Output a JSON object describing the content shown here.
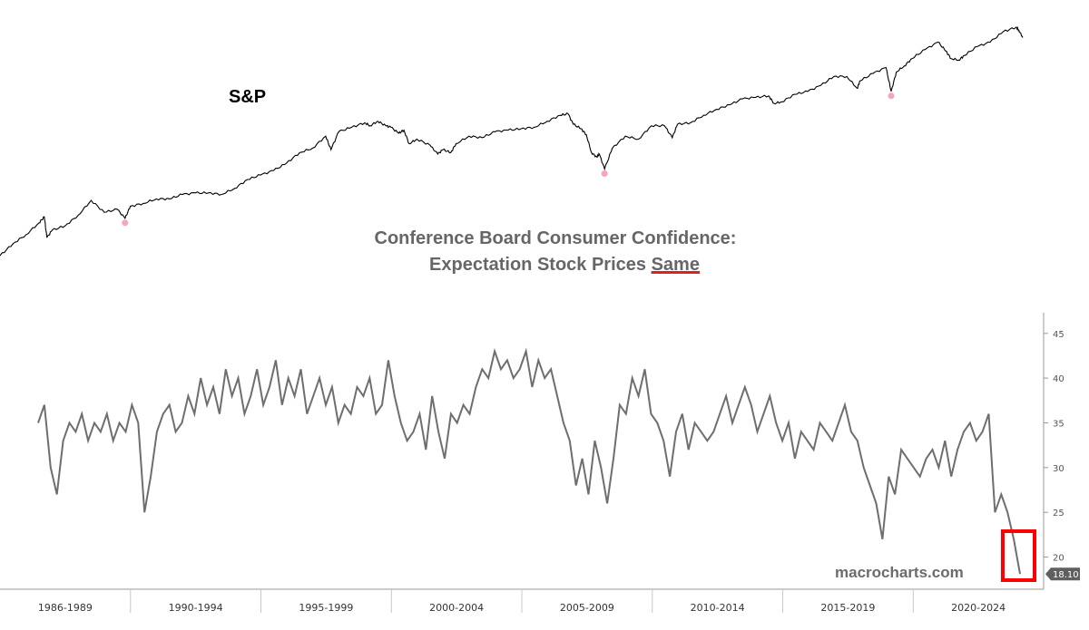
{
  "top_panel": {
    "label": "S&P",
    "line_color": "#000000",
    "marker_color": "#f4a6b8"
  },
  "title": {
    "line1": "Conference Board Consumer Confidence:",
    "line2_prefix": "Expectation Stock Prices ",
    "line2_emphasis": "Same",
    "underline_color": "#e02020"
  },
  "watermark": "macrocharts.com",
  "last_value_label": "18.10",
  "highlight_color": "#ff0000",
  "chart_data": [
    {
      "type": "line",
      "title": "S&P",
      "series": [
        {
          "name": "S&P",
          "x": [
            1986.0,
            1986.5,
            1987.0,
            1987.5,
            1987.7,
            1987.8,
            1988.0,
            1988.5,
            1989.0,
            1989.5,
            1990.0,
            1990.5,
            1990.8,
            1991.0,
            1991.5,
            1992.0,
            1992.5,
            1993.0,
            1993.5,
            1994.0,
            1994.5,
            1995.0,
            1995.5,
            1996.0,
            1996.5,
            1997.0,
            1997.5,
            1998.0,
            1998.5,
            1998.7,
            1999.0,
            1999.5,
            2000.0,
            2000.2,
            2000.5,
            2000.8,
            2001.0,
            2001.3,
            2001.5,
            2001.7,
            2002.0,
            2002.5,
            2002.8,
            2003.0,
            2003.3,
            2003.5,
            2004.0,
            2004.5,
            2005.0,
            2005.5,
            2006.0,
            2006.5,
            2007.0,
            2007.5,
            2007.8,
            2008.0,
            2008.3,
            2008.5,
            2008.7,
            2008.9,
            2009.0,
            2009.2,
            2009.5,
            2010.0,
            2010.5,
            2011.0,
            2011.5,
            2011.8,
            2012.0,
            2012.5,
            2013.0,
            2013.5,
            2014.0,
            2014.5,
            2015.0,
            2015.5,
            2015.7,
            2016.0,
            2016.5,
            2017.0,
            2017.5,
            2018.0,
            2018.5,
            2018.9,
            2019.0,
            2019.5,
            2020.0,
            2020.2,
            2020.4,
            2020.7,
            2021.0,
            2021.5,
            2022.0,
            2022.3,
            2022.5,
            2022.8,
            2023.0,
            2023.5,
            2024.0,
            2024.5,
            2025.0,
            2025.1,
            2025.25
          ],
          "values": [
            2.25,
            2.33,
            2.39,
            2.47,
            2.51,
            2.37,
            2.42,
            2.45,
            2.52,
            2.62,
            2.54,
            2.56,
            2.5,
            2.58,
            2.6,
            2.63,
            2.63,
            2.66,
            2.67,
            2.67,
            2.66,
            2.7,
            2.76,
            2.79,
            2.82,
            2.87,
            2.94,
            2.97,
            3.05,
            2.96,
            3.08,
            3.11,
            3.14,
            3.12,
            3.15,
            3.12,
            3.11,
            3.07,
            3.09,
            3.0,
            3.03,
            2.99,
            2.93,
            2.96,
            2.94,
            3.0,
            3.05,
            3.04,
            3.08,
            3.09,
            3.1,
            3.11,
            3.15,
            3.19,
            3.2,
            3.13,
            3.1,
            3.06,
            2.94,
            2.91,
            2.93,
            2.83,
            2.97,
            3.05,
            3.03,
            3.12,
            3.12,
            3.04,
            3.13,
            3.14,
            3.19,
            3.23,
            3.26,
            3.3,
            3.31,
            3.32,
            3.27,
            3.28,
            3.33,
            3.35,
            3.39,
            3.45,
            3.45,
            3.37,
            3.42,
            3.47,
            3.51,
            3.35,
            3.48,
            3.52,
            3.57,
            3.63,
            3.68,
            3.62,
            3.57,
            3.56,
            3.59,
            3.65,
            3.68,
            3.75,
            3.78,
            3.76,
            3.71
          ]
        }
      ],
      "markers": [
        {
          "x": 1990.8,
          "y": 2.5
        },
        {
          "x": 2009.2,
          "y": 2.83
        },
        {
          "x": 2020.2,
          "y": 3.35
        }
      ]
    },
    {
      "type": "line",
      "title": "Conference Board Consumer Confidence: Expectation Stock Prices Same",
      "x_ticks": [
        "1986-1989",
        "1990-1994",
        "1995-1999",
        "2000-2004",
        "2005-2009",
        "2010-2014",
        "2015-2019",
        "2020-2024"
      ],
      "y_ticks": [
        20,
        25,
        30,
        35,
        40,
        45
      ],
      "ylim": [
        16.3,
        46.5
      ],
      "line_color": "#6e6e6e",
      "series": [
        {
          "name": "Expectation Stock Prices Same",
          "x": [
            1986.0,
            1986.25,
            1986.5,
            1986.75,
            1987.0,
            1987.25,
            1987.5,
            1987.75,
            1988.0,
            1988.25,
            1988.5,
            1988.75,
            1989.0,
            1989.25,
            1989.5,
            1989.75,
            1990.0,
            1990.25,
            1990.5,
            1990.75,
            1991.0,
            1991.25,
            1991.5,
            1991.75,
            1992.0,
            1992.25,
            1992.5,
            1992.75,
            1993.0,
            1993.25,
            1993.5,
            1993.75,
            1994.0,
            1994.25,
            1994.5,
            1994.75,
            1995.0,
            1995.25,
            1995.5,
            1995.75,
            1996.0,
            1996.25,
            1996.5,
            1996.75,
            1997.0,
            1997.25,
            1997.5,
            1997.75,
            1998.0,
            1998.25,
            1998.5,
            1998.75,
            1999.0,
            1999.25,
            1999.5,
            1999.75,
            2000.0,
            2000.25,
            2000.5,
            2000.75,
            2001.0,
            2001.25,
            2001.5,
            2001.75,
            2002.0,
            2002.25,
            2002.5,
            2002.75,
            2003.0,
            2003.25,
            2003.5,
            2003.75,
            2004.0,
            2004.25,
            2004.5,
            2004.75,
            2005.0,
            2005.25,
            2005.5,
            2005.75,
            2006.0,
            2006.25,
            2006.5,
            2006.75,
            2007.0,
            2007.25,
            2007.5,
            2007.75,
            2008.0,
            2008.25,
            2008.5,
            2008.75,
            2009.0,
            2009.25,
            2009.5,
            2009.75,
            2010.0,
            2010.25,
            2010.5,
            2010.75,
            2011.0,
            2011.25,
            2011.5,
            2011.75,
            2012.0,
            2012.25,
            2012.5,
            2012.75,
            2013.0,
            2013.25,
            2013.5,
            2013.75,
            2014.0,
            2014.25,
            2014.5,
            2014.75,
            2015.0,
            2015.25,
            2015.5,
            2015.75,
            2016.0,
            2016.25,
            2016.5,
            2016.75,
            2017.0,
            2017.25,
            2017.5,
            2017.75,
            2018.0,
            2018.25,
            2018.5,
            2018.75,
            2019.0,
            2019.25,
            2019.5,
            2019.75,
            2020.0,
            2020.25,
            2020.5,
            2020.75,
            2021.0,
            2021.25,
            2021.5,
            2021.75,
            2022.0,
            2022.25,
            2022.5,
            2022.75,
            2023.0,
            2023.25,
            2023.5,
            2023.75,
            2024.0,
            2024.25,
            2024.5,
            2024.75,
            2025.0,
            2025.25
          ],
          "values": [
            35,
            37,
            30,
            27,
            33,
            35,
            34,
            36,
            33,
            35,
            34,
            36,
            33,
            35,
            34,
            37,
            35,
            25,
            29,
            34,
            36,
            37,
            34,
            35,
            38,
            36,
            40,
            37,
            39,
            36,
            41,
            38,
            40,
            36,
            38,
            41,
            37,
            39,
            42,
            37,
            40,
            38,
            41,
            36,
            38,
            40,
            37,
            39,
            35,
            37,
            36,
            39,
            38,
            40,
            36,
            37,
            42,
            38,
            35,
            33,
            34,
            36,
            32,
            38,
            34,
            31,
            36,
            35,
            37,
            36,
            39,
            41,
            40,
            43,
            41,
            42,
            40,
            41,
            43,
            39,
            42,
            40,
            41,
            38,
            35,
            33,
            28,
            31,
            27,
            33,
            30,
            26,
            31,
            37,
            36,
            40,
            38,
            41,
            36,
            35,
            33,
            29,
            34,
            36,
            32,
            35,
            34,
            33,
            34,
            36,
            38,
            35,
            37,
            39,
            37,
            34,
            36,
            38,
            35,
            33,
            35,
            31,
            34,
            33,
            32,
            35,
            34,
            33,
            35,
            37,
            34,
            33,
            30,
            28,
            26,
            22,
            29,
            27,
            32,
            31,
            30,
            29,
            31,
            32,
            30,
            33,
            29,
            32,
            34,
            35,
            33,
            34,
            36,
            25,
            27,
            25,
            22,
            18.1
          ]
        }
      ]
    }
  ]
}
